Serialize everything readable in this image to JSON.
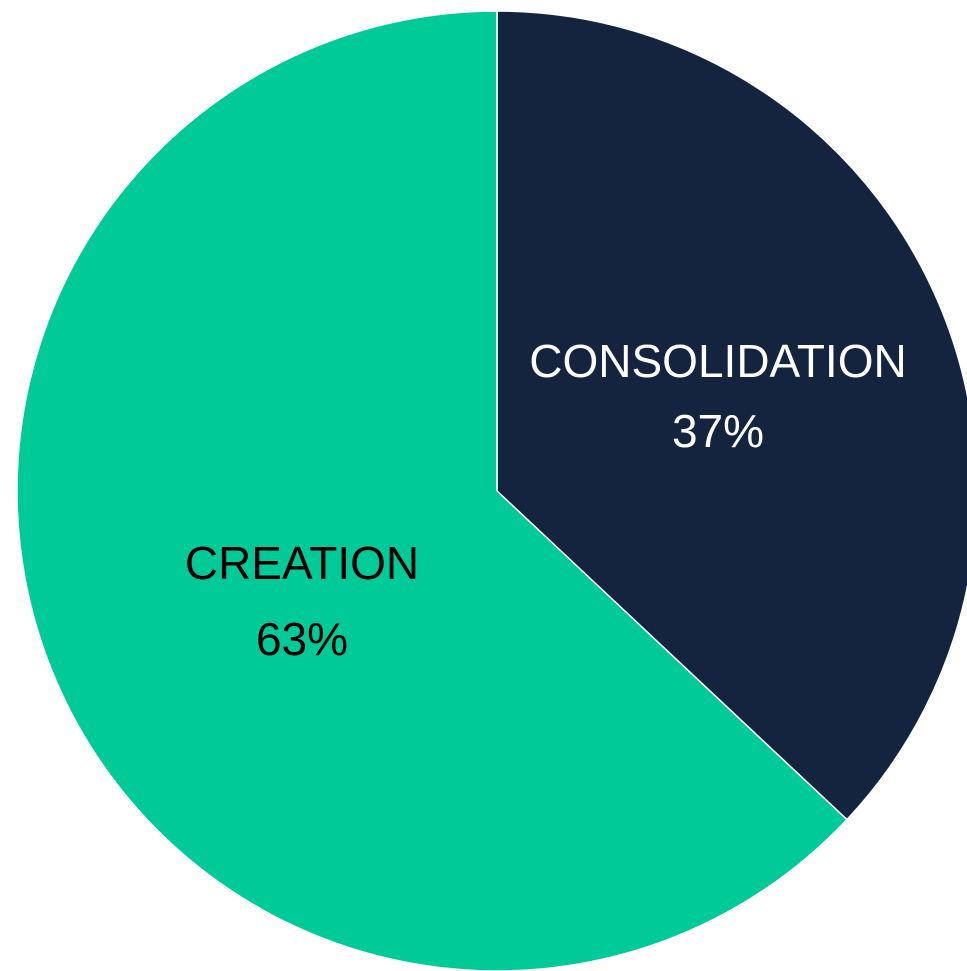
{
  "chart_data": {
    "type": "pie",
    "slices": [
      {
        "label": "CONSOLIDATION",
        "value": 37,
        "value_label": "37%",
        "color": "#14243f",
        "text_color": "#ffffff"
      },
      {
        "label": "CREATION",
        "value": 63,
        "value_label": "63%",
        "color": "#00cb98",
        "text_color": "#000000"
      }
    ],
    "start": "top",
    "direction": "clockwise",
    "legend": "none",
    "data_labels": "inside"
  }
}
